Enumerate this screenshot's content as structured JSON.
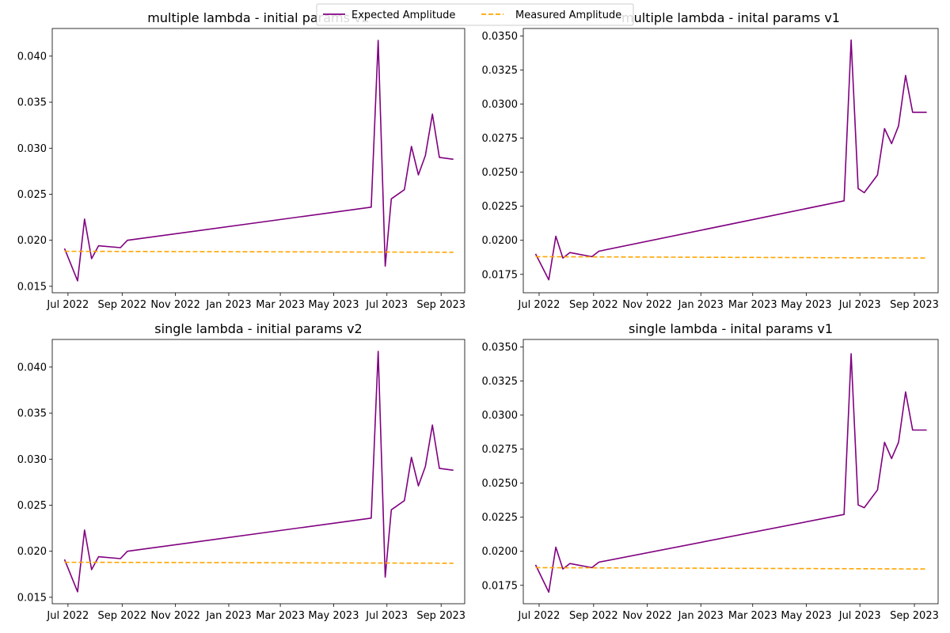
{
  "legend": {
    "position": "top-center",
    "entries": [
      {
        "label": "Expected Amplitude",
        "color": "#800080",
        "style": "solid"
      },
      {
        "label": "Measured Amplitude",
        "color": "#ffa500",
        "style": "dashed"
      }
    ]
  },
  "chart_data": [
    {
      "type": "line",
      "title": "multiple lambda - initial params v2",
      "xlabel": "",
      "ylabel": "",
      "x_type": "date",
      "xlim": [
        "2022-06-13",
        "2023-09-28"
      ],
      "ylim": [
        0.0143,
        0.043
      ],
      "x_ticks": [
        {
          "label": "Jul 2022",
          "date": "2022-07-01"
        },
        {
          "label": "Sep 2022",
          "date": "2022-09-01"
        },
        {
          "label": "Nov 2022",
          "date": "2022-11-01"
        },
        {
          "label": "Jan 2023",
          "date": "2023-01-01"
        },
        {
          "label": "Mar 2023",
          "date": "2023-03-01"
        },
        {
          "label": "May 2023",
          "date": "2023-05-01"
        },
        {
          "label": "Jul 2023",
          "date": "2023-07-01"
        },
        {
          "label": "Sep 2023",
          "date": "2023-09-01"
        }
      ],
      "y_ticks": [
        "0.015",
        "0.020",
        "0.025",
        "0.030",
        "0.035",
        "0.040"
      ],
      "y_tick_values": [
        0.015,
        0.02,
        0.025,
        0.03,
        0.035,
        0.04
      ],
      "grid": false,
      "series": [
        {
          "name": "Expected Amplitude",
          "color": "#800080",
          "style": "solid",
          "x": [
            "2022-06-27",
            "2022-07-12",
            "2022-07-20",
            "2022-07-28",
            "2022-08-05",
            "2022-08-30",
            "2022-09-07",
            "2023-06-13",
            "2023-06-21",
            "2023-06-29",
            "2023-07-06",
            "2023-07-21",
            "2023-07-29",
            "2023-08-06",
            "2023-08-14",
            "2023-08-22",
            "2023-08-30",
            "2023-09-15"
          ],
          "y": [
            0.0191,
            0.0156,
            0.0223,
            0.018,
            0.0194,
            0.0192,
            0.02,
            0.0236,
            0.0417,
            0.0172,
            0.0245,
            0.0255,
            0.0302,
            0.0271,
            0.0292,
            0.0337,
            0.029,
            0.0288
          ]
        },
        {
          "name": "Measured Amplitude",
          "color": "#ffa500",
          "style": "dashed",
          "x": [
            "2022-06-27",
            "2023-09-15"
          ],
          "y": [
            0.0188,
            0.0187
          ]
        }
      ]
    },
    {
      "type": "line",
      "title": "multiple lambda - inital params v1",
      "xlabel": "",
      "ylabel": "",
      "x_type": "date",
      "xlim": [
        "2022-06-13",
        "2023-09-28"
      ],
      "ylim": [
        0.01615,
        0.03555
      ],
      "x_ticks": [
        {
          "label": "Jul 2022",
          "date": "2022-07-01"
        },
        {
          "label": "Sep 2022",
          "date": "2022-09-01"
        },
        {
          "label": "Nov 2022",
          "date": "2022-11-01"
        },
        {
          "label": "Jan 2023",
          "date": "2023-01-01"
        },
        {
          "label": "Mar 2023",
          "date": "2023-03-01"
        },
        {
          "label": "May 2023",
          "date": "2023-05-01"
        },
        {
          "label": "Jul 2023",
          "date": "2023-07-01"
        },
        {
          "label": "Sep 2023",
          "date": "2023-09-01"
        }
      ],
      "y_ticks": [
        "0.0175",
        "0.0200",
        "0.0225",
        "0.0250",
        "0.0275",
        "0.0300",
        "0.0325",
        "0.0350"
      ],
      "y_tick_values": [
        0.0175,
        0.02,
        0.0225,
        0.025,
        0.0275,
        0.03,
        0.0325,
        0.035
      ],
      "grid": false,
      "series": [
        {
          "name": "Expected Amplitude",
          "color": "#800080",
          "style": "solid",
          "x": [
            "2022-06-27",
            "2022-07-12",
            "2022-07-20",
            "2022-07-28",
            "2022-08-05",
            "2022-08-30",
            "2022-09-07",
            "2023-06-13",
            "2023-06-21",
            "2023-06-29",
            "2023-07-06",
            "2023-07-21",
            "2023-07-29",
            "2023-08-06",
            "2023-08-14",
            "2023-08-22",
            "2023-08-30",
            "2023-09-15"
          ],
          "y": [
            0.019,
            0.0171,
            0.0203,
            0.0187,
            0.0191,
            0.0188,
            0.0192,
            0.0229,
            0.0347,
            0.0238,
            0.0235,
            0.0248,
            0.0282,
            0.0271,
            0.0284,
            0.0321,
            0.0294,
            0.0294
          ]
        },
        {
          "name": "Measured Amplitude",
          "color": "#ffa500",
          "style": "dashed",
          "x": [
            "2022-06-27",
            "2023-09-15"
          ],
          "y": [
            0.0188,
            0.0187
          ]
        }
      ]
    },
    {
      "type": "line",
      "title": "single lambda - initial params v2",
      "xlabel": "",
      "ylabel": "",
      "x_type": "date",
      "xlim": [
        "2022-06-13",
        "2023-09-28"
      ],
      "ylim": [
        0.0143,
        0.043
      ],
      "x_ticks": [
        {
          "label": "Jul 2022",
          "date": "2022-07-01"
        },
        {
          "label": "Sep 2022",
          "date": "2022-09-01"
        },
        {
          "label": "Nov 2022",
          "date": "2022-11-01"
        },
        {
          "label": "Jan 2023",
          "date": "2023-01-01"
        },
        {
          "label": "Mar 2023",
          "date": "2023-03-01"
        },
        {
          "label": "May 2023",
          "date": "2023-05-01"
        },
        {
          "label": "Jul 2023",
          "date": "2023-07-01"
        },
        {
          "label": "Sep 2023",
          "date": "2023-09-01"
        }
      ],
      "y_ticks": [
        "0.015",
        "0.020",
        "0.025",
        "0.030",
        "0.035",
        "0.040"
      ],
      "y_tick_values": [
        0.015,
        0.02,
        0.025,
        0.03,
        0.035,
        0.04
      ],
      "grid": false,
      "series": [
        {
          "name": "Expected Amplitude",
          "color": "#800080",
          "style": "solid",
          "x": [
            "2022-06-27",
            "2022-07-12",
            "2022-07-20",
            "2022-07-28",
            "2022-08-05",
            "2022-08-30",
            "2022-09-07",
            "2023-06-13",
            "2023-06-21",
            "2023-06-29",
            "2023-07-06",
            "2023-07-21",
            "2023-07-29",
            "2023-08-06",
            "2023-08-14",
            "2023-08-22",
            "2023-08-30",
            "2023-09-15"
          ],
          "y": [
            0.0191,
            0.0156,
            0.0223,
            0.018,
            0.0194,
            0.0192,
            0.02,
            0.0236,
            0.0417,
            0.0172,
            0.0245,
            0.0255,
            0.0302,
            0.0271,
            0.0292,
            0.0337,
            0.029,
            0.0288
          ]
        },
        {
          "name": "Measured Amplitude",
          "color": "#ffa500",
          "style": "dashed",
          "x": [
            "2022-06-27",
            "2023-09-15"
          ],
          "y": [
            0.0188,
            0.0187
          ]
        }
      ]
    },
    {
      "type": "line",
      "title": "single lambda - inital params v1",
      "xlabel": "",
      "ylabel": "",
      "x_type": "date",
      "xlim": [
        "2022-06-13",
        "2023-09-28"
      ],
      "ylim": [
        0.01615,
        0.03555
      ],
      "x_ticks": [
        {
          "label": "Jul 2022",
          "date": "2022-07-01"
        },
        {
          "label": "Sep 2022",
          "date": "2022-09-01"
        },
        {
          "label": "Nov 2022",
          "date": "2022-11-01"
        },
        {
          "label": "Jan 2023",
          "date": "2023-01-01"
        },
        {
          "label": "Mar 2023",
          "date": "2023-03-01"
        },
        {
          "label": "May 2023",
          "date": "2023-05-01"
        },
        {
          "label": "Jul 2023",
          "date": "2023-07-01"
        },
        {
          "label": "Sep 2023",
          "date": "2023-09-01"
        }
      ],
      "y_ticks": [
        "0.0175",
        "0.0200",
        "0.0225",
        "0.0250",
        "0.0275",
        "0.0300",
        "0.0325",
        "0.0350"
      ],
      "y_tick_values": [
        0.0175,
        0.02,
        0.0225,
        0.025,
        0.0275,
        0.03,
        0.0325,
        0.035
      ],
      "grid": false,
      "series": [
        {
          "name": "Expected Amplitude",
          "color": "#800080",
          "style": "solid",
          "x": [
            "2022-06-27",
            "2022-07-12",
            "2022-07-20",
            "2022-07-28",
            "2022-08-05",
            "2022-08-30",
            "2022-09-07",
            "2023-06-13",
            "2023-06-21",
            "2023-06-29",
            "2023-07-06",
            "2023-07-21",
            "2023-07-29",
            "2023-08-06",
            "2023-08-14",
            "2023-08-22",
            "2023-08-30",
            "2023-09-15"
          ],
          "y": [
            0.019,
            0.017,
            0.0203,
            0.0187,
            0.0191,
            0.0188,
            0.0192,
            0.0227,
            0.0345,
            0.0234,
            0.0232,
            0.0245,
            0.028,
            0.0268,
            0.028,
            0.0317,
            0.0289,
            0.0289
          ]
        },
        {
          "name": "Measured Amplitude",
          "color": "#ffa500",
          "style": "dashed",
          "x": [
            "2022-06-27",
            "2023-09-15"
          ],
          "y": [
            0.0188,
            0.0187
          ]
        }
      ]
    }
  ]
}
